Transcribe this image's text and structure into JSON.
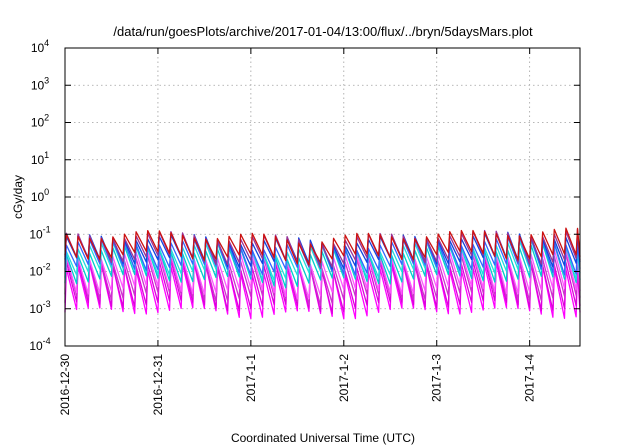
{
  "chart_data": {
    "type": "line",
    "title": "/data/run/goesPlots/archive/2017-01-04/13:00/flux/../bryn/5daysMars.plot",
    "xlabel": "Coordinated Universal Time (UTC)",
    "ylabel": "cGy/day",
    "y_scale": "log",
    "ylim": [
      0.0001,
      10000
    ],
    "xlim_days": [
      "2016-12-30T00:00",
      "2017-01-04T13:00"
    ],
    "y_ticks": [
      {
        "base": "10",
        "exp": "-4"
      },
      {
        "base": "10",
        "exp": "-3"
      },
      {
        "base": "10",
        "exp": "-2"
      },
      {
        "base": "10",
        "exp": "-1"
      },
      {
        "base": "10",
        "exp": "0"
      },
      {
        "base": "10",
        "exp": "1"
      },
      {
        "base": "10",
        "exp": "2"
      },
      {
        "base": "10",
        "exp": "3"
      },
      {
        "base": "10",
        "exp": "4"
      }
    ],
    "x_ticks": [
      "2016-12-30",
      "2016-12-31",
      "2017-1-1",
      "2017-1-2",
      "2017-1-3",
      "2017-1-4"
    ],
    "grid": true,
    "pattern": {
      "sawtooth_period_hours": 3,
      "description_levels": "periodic sawtooth between ~1e-3 and ~1e-1"
    },
    "series": [
      {
        "color": "#ff00ff",
        "peak": 0.012,
        "trough": 0.0008
      },
      {
        "color": "#dd00dd",
        "peak": 0.015,
        "trough": 0.0012
      },
      {
        "color": "#cc33cc",
        "peak": 0.02,
        "trough": 0.002
      },
      {
        "color": "#ff55ff",
        "peak": 0.025,
        "trough": 0.003
      },
      {
        "color": "#00cccc",
        "peak": 0.035,
        "trough": 0.006
      },
      {
        "color": "#22dddd",
        "peak": 0.045,
        "trough": 0.009
      },
      {
        "color": "#3366ff",
        "peak": 0.055,
        "trough": 0.012
      },
      {
        "color": "#1144dd",
        "peak": 0.075,
        "trough": 0.018
      },
      {
        "color": "#993399",
        "peak": 0.085,
        "trough": 0.02
      },
      {
        "color": "#cc1111",
        "peak": 0.09,
        "trough": 0.025
      }
    ],
    "colors": {
      "axis": "#000000",
      "grid": "#a0a0a0"
    }
  }
}
